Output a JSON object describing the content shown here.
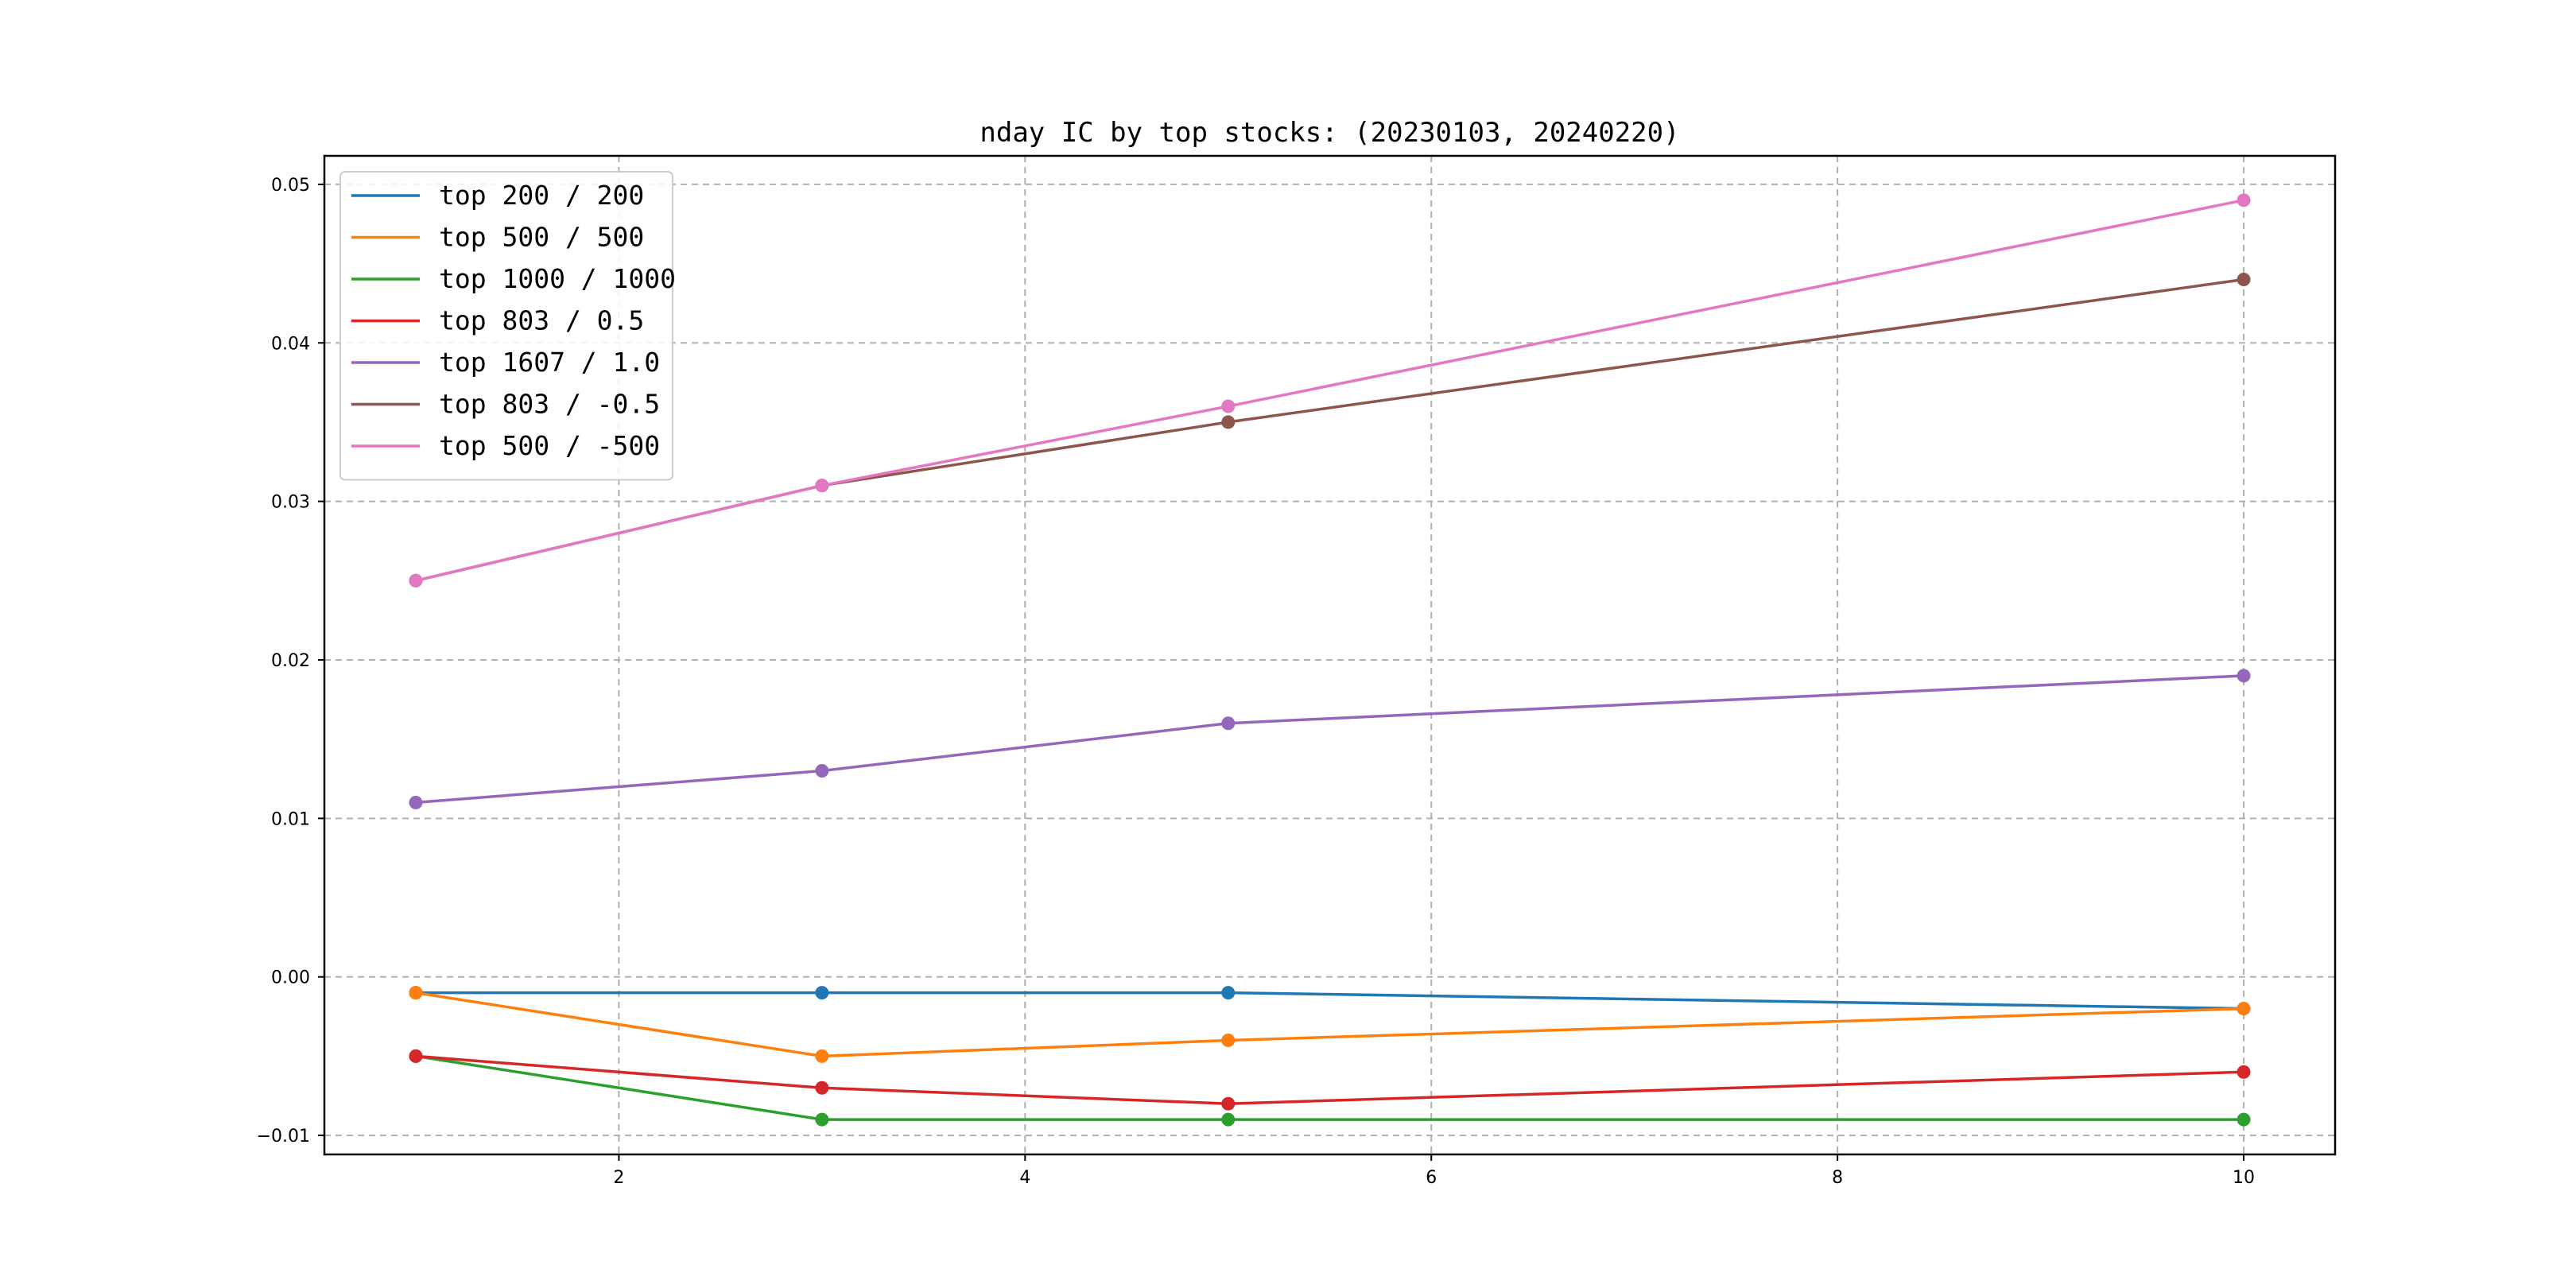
{
  "chart_data": {
    "type": "line",
    "title": "nday IC by top stocks: (20230103, 20240220)",
    "xlabel": "",
    "ylabel": "",
    "x": [
      1,
      3,
      5,
      10
    ],
    "xlim": [
      0.55,
      10.45
    ],
    "ylim": [
      -0.0112,
      0.0518
    ],
    "x_ticks": [
      2,
      4,
      6,
      8,
      10
    ],
    "x_tick_labels": [
      "2",
      "4",
      "6",
      "8",
      "10"
    ],
    "y_ticks": [
      -0.01,
      0.0,
      0.01,
      0.02,
      0.03,
      0.04,
      0.05
    ],
    "y_tick_labels": [
      "−0.01",
      "0.00",
      "0.01",
      "0.02",
      "0.03",
      "0.04",
      "0.05"
    ],
    "grid": true,
    "legend_position": "top-left",
    "markers": true,
    "series": [
      {
        "name": "top 200 / 200",
        "color": "#1f77b4",
        "values": [
          -0.001,
          -0.001,
          -0.001,
          -0.002
        ]
      },
      {
        "name": "top 500 / 500",
        "color": "#ff7f0e",
        "values": [
          -0.001,
          -0.005,
          -0.004,
          -0.002
        ]
      },
      {
        "name": "top 1000 / 1000",
        "color": "#2ca02c",
        "values": [
          -0.005,
          -0.009,
          -0.009,
          -0.009
        ]
      },
      {
        "name": "top 803 / 0.5",
        "color": "#d62728",
        "values": [
          -0.005,
          -0.007,
          -0.008,
          -0.006
        ]
      },
      {
        "name": "top 1607 / 1.0",
        "color": "#9467bd",
        "values": [
          0.011,
          0.013,
          0.016,
          0.019
        ]
      },
      {
        "name": "top 803 / -0.5",
        "color": "#8c564b",
        "values": [
          0.025,
          0.031,
          0.035,
          0.044
        ]
      },
      {
        "name": "top 500 / -500",
        "color": "#e377c2",
        "values": [
          0.025,
          0.031,
          0.036,
          0.049
        ]
      }
    ]
  }
}
